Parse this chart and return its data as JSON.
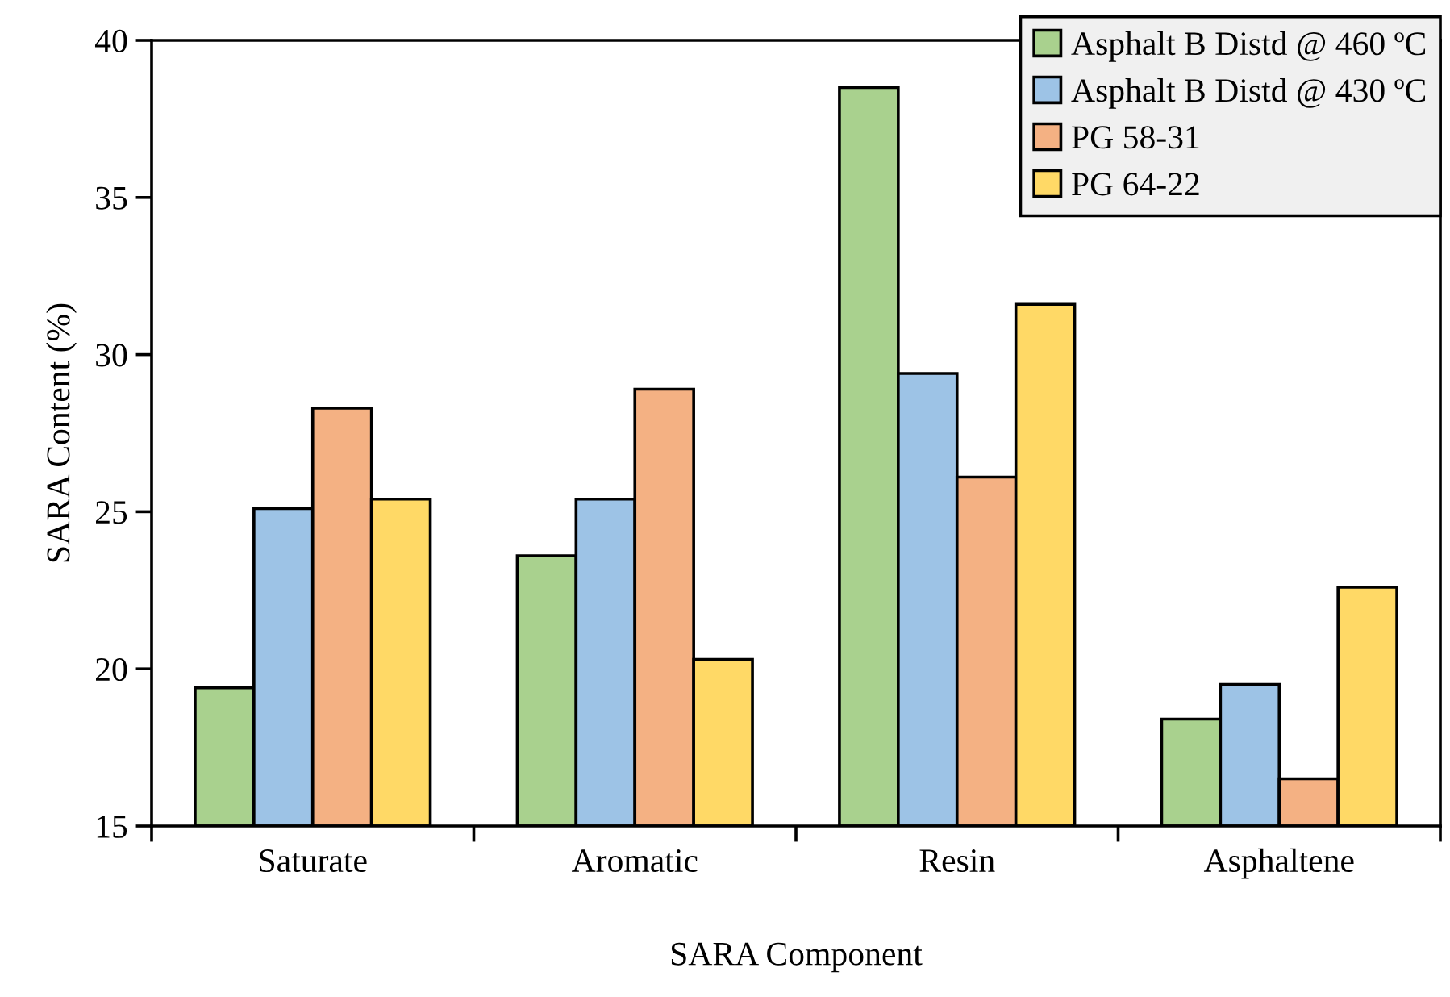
{
  "chart_data": {
    "type": "bar",
    "xlabel": "SARA Component",
    "ylabel": "SARA Content (%)",
    "categories": [
      "Saturate",
      "Aromatic",
      "Resin",
      "Asphaltene"
    ],
    "series": [
      {
        "name": "Asphalt B Distd @ 460 ºC",
        "color": "#a9d18e",
        "values": [
          19.4,
          23.6,
          38.5,
          18.4
        ]
      },
      {
        "name": "Asphalt B Distd @ 430 ºC",
        "color": "#9dc3e6",
        "values": [
          25.1,
          25.4,
          29.4,
          19.5
        ]
      },
      {
        "name": "PG 58-31",
        "color": "#f4b183",
        "values": [
          28.3,
          28.9,
          26.1,
          16.5
        ]
      },
      {
        "name": "PG 64-22",
        "color": "#ffd966",
        "values": [
          25.4,
          20.3,
          31.6,
          22.6
        ]
      }
    ],
    "ylim": [
      15,
      40
    ],
    "yticks": [
      15,
      20,
      25,
      30,
      35,
      40
    ],
    "grid": false,
    "legend": "top right"
  }
}
